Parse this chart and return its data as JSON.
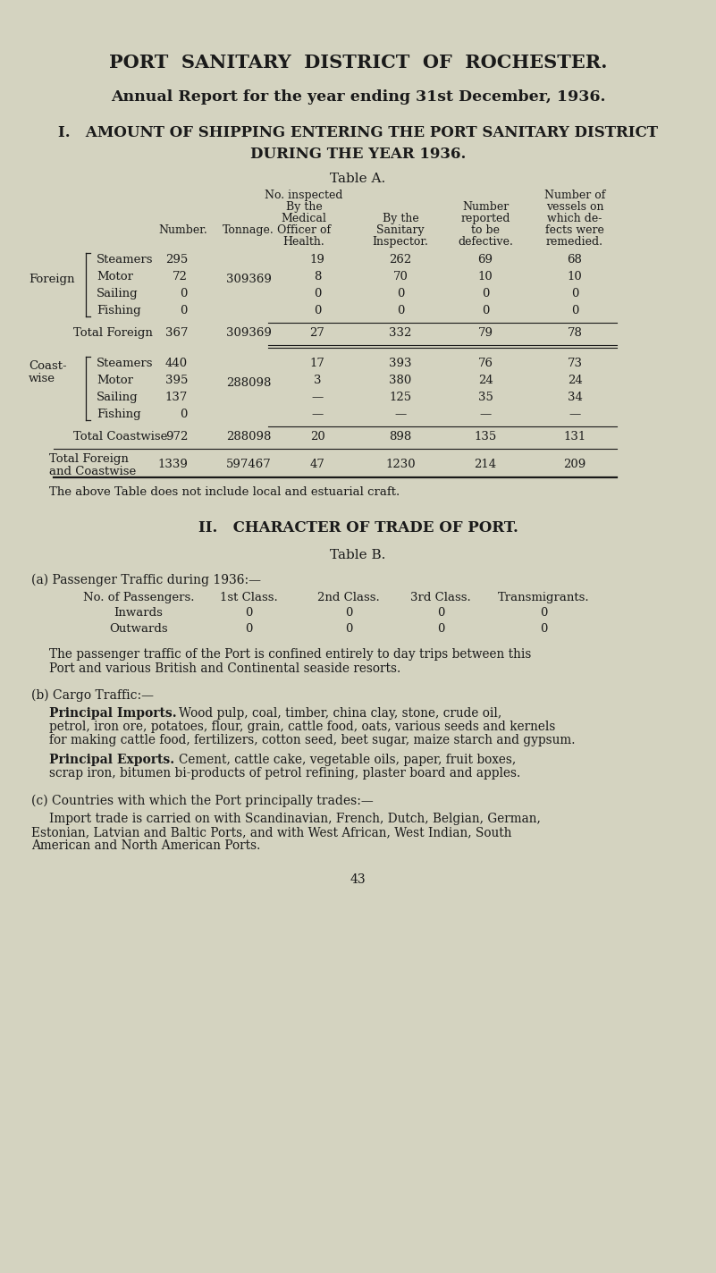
{
  "bg_color": "#d4d3c0",
  "text_color": "#1a1a1a",
  "title1": "PORT  SANITARY  DISTRICT  OF  ROCHESTER.",
  "title2": "Annual Report for the year ending 31st December, 1936.",
  "section1_line1": "I.   AMOUNT OF SHIPPING ENTERING THE PORT SANITARY DISTRICT",
  "section1_line2": "DURING THE YEAR 1936.",
  "table_a_title": "Table A.",
  "footnote": "The above Table does not include local and estuarial craft.",
  "section2_heading": "II.   CHARACTER OF TRADE OF PORT.",
  "table_b_title": "Table B.",
  "passenger_heading": "(a) Passenger Traffic during 1936:—",
  "passenger_col_headers": [
    "No. of Passengers.",
    "1st Class.",
    "2nd Class.",
    "3rd Class.",
    "Transmigrants."
  ],
  "passenger_rows": [
    [
      "Inwards",
      "0",
      "0",
      "0",
      "0"
    ],
    [
      "Outwards",
      "0",
      "0",
      "0",
      "0"
    ]
  ],
  "passenger_note_line1": "The passenger traffic of the Port is confined entirely to day trips between this",
  "passenger_note_line2": "Port and various British and Continental seaside resorts.",
  "cargo_heading": "(b) Cargo Traffic:—",
  "imports_label": "Principal Imports.",
  "imports_lines": [
    "Wood pulp, coal, timber, china clay, stone, crude oil,",
    "petrol, iron ore, potatoes, flour, grain, cattle food, oats, various seeds and kernels",
    "for making cattle food, fertilizers, cotton seed, beet sugar, maize starch and gypsum."
  ],
  "exports_label": "Principal Exports.",
  "exports_lines": [
    "Cement, cattle cake, vegetable oils, paper, fruit boxes,",
    "scrap iron, bitumen bi-products of petrol refining, plaster board and apples."
  ],
  "countries_heading": "(c) Countries with which the Port principally trades:—",
  "countries_lines": [
    "Import trade is carried on with Scandinavian, French, Dutch, Belgian, German,",
    "Estonian, Latvian and Baltic Ports, and with West African, West Indian, South",
    "American and North American Ports."
  ],
  "page_number": "43",
  "foreign_vessels": [
    "Steamers",
    "Motor",
    "Sailing",
    "Fishing"
  ],
  "foreign_numbers": [
    "295",
    "72",
    "0",
    "0"
  ],
  "foreign_tonnage": "309369",
  "foreign_health": [
    "19",
    "8",
    "0",
    "0"
  ],
  "foreign_inspector": [
    "262",
    "70",
    "0",
    "0"
  ],
  "foreign_defective": [
    "69",
    "10",
    "0",
    "0"
  ],
  "foreign_remedied": [
    "68",
    "10",
    "0",
    "0"
  ],
  "total_foreign_num": "367",
  "total_foreign_ton": "309369",
  "total_foreign_health": "27",
  "total_foreign_insp": "332",
  "total_foreign_def": "79",
  "total_foreign_rem": "78",
  "cw_vessels": [
    "Steamers",
    "Motor",
    "Sailing",
    "Fishing"
  ],
  "cw_numbers": [
    "440",
    "395",
    "137",
    "0"
  ],
  "cw_tonnage": "288098",
  "cw_health": [
    "17",
    "3",
    "—",
    "—"
  ],
  "cw_inspector": [
    "393",
    "380",
    "125",
    "—"
  ],
  "cw_defective": [
    "76",
    "24",
    "35",
    "—"
  ],
  "cw_remedied": [
    "73",
    "24",
    "34",
    "—"
  ],
  "total_cw_num": "972",
  "total_cw_ton": "288098",
  "total_cw_health": "20",
  "total_cw_insp": "898",
  "total_cw_def": "135",
  "total_cw_rem": "131",
  "total_all_num": "1339",
  "total_all_ton": "597467",
  "total_all_health": "47",
  "total_all_insp": "1230",
  "total_all_def": "214",
  "total_all_rem": "209"
}
